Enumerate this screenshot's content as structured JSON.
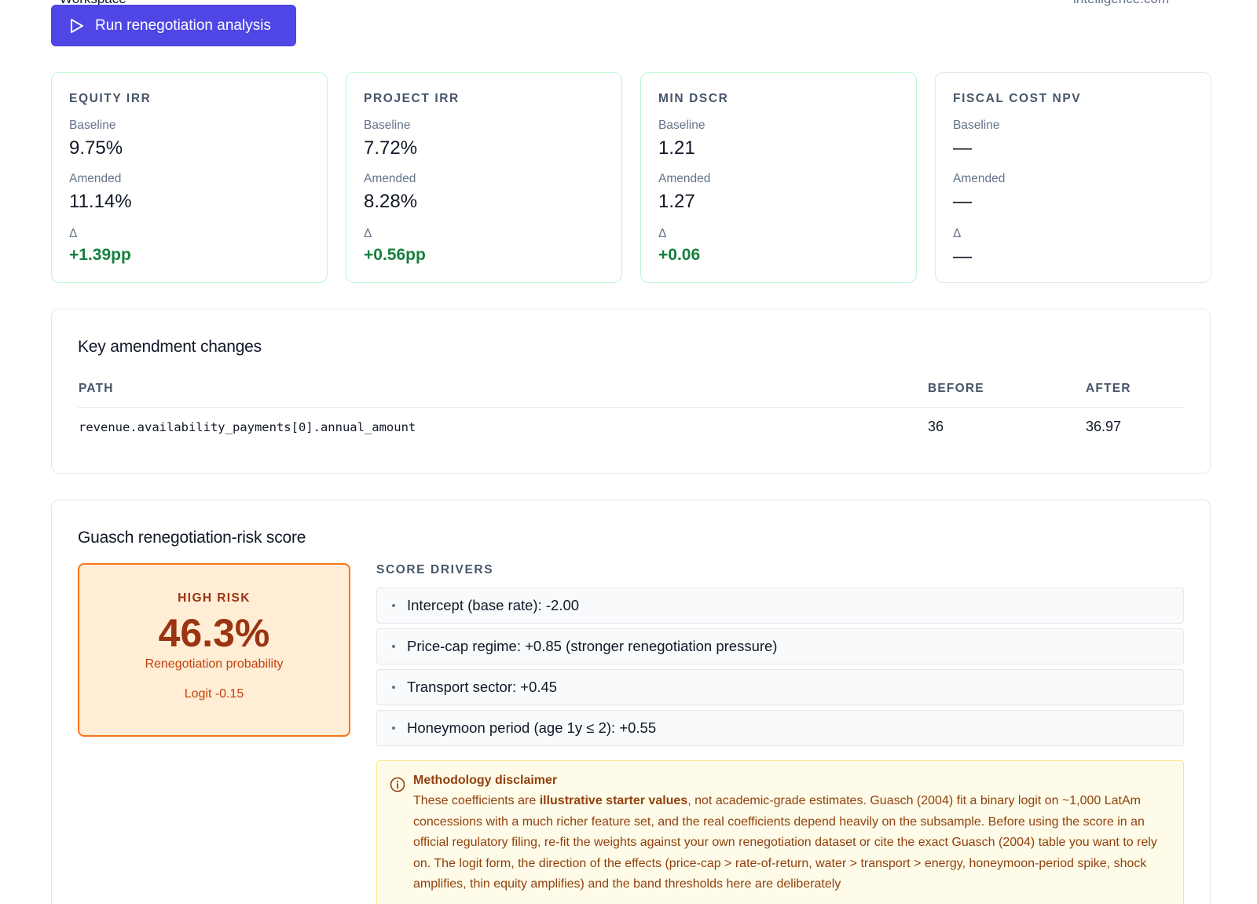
{
  "header": {
    "cut_left": "Workspace",
    "cut_right": "intelligence.com"
  },
  "toolbar": {
    "run_label": "Run renegotiation analysis"
  },
  "metrics": [
    {
      "title": "EQUITY IRR",
      "baseline_label": "Baseline",
      "baseline": "9.75%",
      "amended_label": "Amended",
      "amended": "11.14%",
      "delta_label": "Δ",
      "delta": "+1.39pp"
    },
    {
      "title": "PROJECT IRR",
      "baseline_label": "Baseline",
      "baseline": "7.72%",
      "amended_label": "Amended",
      "amended": "8.28%",
      "delta_label": "Δ",
      "delta": "+0.56pp"
    },
    {
      "title": "MIN DSCR",
      "baseline_label": "Baseline",
      "baseline": "1.21",
      "amended_label": "Amended",
      "amended": "1.27",
      "delta_label": "Δ",
      "delta": "+0.06"
    },
    {
      "title": "FISCAL COST NPV",
      "baseline_label": "Baseline",
      "baseline": "—",
      "amended_label": "Amended",
      "amended": "—",
      "delta_label": "Δ",
      "delta": "—"
    }
  ],
  "changes": {
    "title": "Key amendment changes",
    "columns": {
      "path": "PATH",
      "before": "BEFORE",
      "after": "AFTER"
    },
    "rows": [
      {
        "path": "revenue.availability_payments[0].annual_amount",
        "before": "36",
        "after": "36.97"
      }
    ]
  },
  "risk": {
    "title": "Guasch renegotiation-risk score",
    "level": "HIGH RISK",
    "probability": "46.3%",
    "probability_label": "Renegotiation probability",
    "logit": "Logit -0.15",
    "drivers_title": "SCORE DRIVERS",
    "drivers": [
      "Intercept (base rate): -2.00",
      "Price-cap regime: +0.85 (stronger renegotiation pressure)",
      "Transport sector: +0.45",
      "Honeymoon period (age 1y ≤ 2): +0.55"
    ],
    "disclaimer": {
      "title": "Methodology disclaimer",
      "text_pre": "These coefficients are ",
      "text_bold": "illustrative starter values",
      "text_post": ", not academic-grade estimates. Guasch (2004) fit a binary logit on ~1,000 LatAm concessions with a much richer feature set, and the real coefficients depend heavily on the subsample. Before using the score in an official regulatory filing, re-fit the weights against your own renegotiation dataset or cite the exact Guasch (2004) table you want to rely on. The logit form, the direction of the effects (price-cap > rate-of-return, water > transport > energy, honeymoon-period spike, shock amplifies, thin equity amplifies) and the band thresholds here are deliberately"
    }
  },
  "colors": {
    "accent": "#4f46e5",
    "positive": "#15803d",
    "risk_high": "#f97316",
    "risk_bg": "#ffedd5",
    "warning_bg": "#fefce8"
  },
  "icons": {
    "run": "play-icon",
    "disclaimer": "info-icon"
  }
}
